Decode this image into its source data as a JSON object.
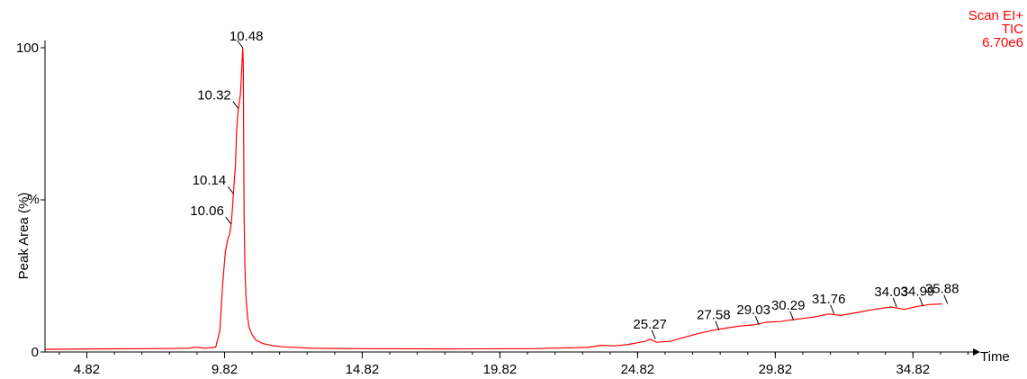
{
  "chart_data": {
    "type": "line",
    "info": [
      "Scan EI+",
      "TIC",
      "6.70e6"
    ],
    "xlabel": "Time",
    "ylabel": "Peak Area (%)",
    "y_axis_unit": "%",
    "xlim": [
      3.3,
      37.0
    ],
    "ylim": [
      0,
      100
    ],
    "x_ticks": [
      "4.82",
      "9.82",
      "14.82",
      "19.82",
      "24.82",
      "29.82",
      "34.82"
    ],
    "y_ticks": [
      "0",
      "100"
    ],
    "color": "#ff0000",
    "series": [
      {
        "x": [
          3.3,
          5.0,
          7.0,
          8.5,
          8.8,
          9.1,
          9.5,
          9.65,
          9.75,
          9.85,
          9.95,
          10.0,
          10.06,
          10.1,
          10.14,
          10.18,
          10.22,
          10.26,
          10.3,
          10.32,
          10.36,
          10.4,
          10.44,
          10.48,
          10.5,
          10.53,
          10.56,
          10.6,
          10.65,
          10.7,
          10.8,
          10.95,
          11.2,
          11.6,
          12.0,
          13.0,
          15.0,
          18.0,
          21.0,
          23.0,
          23.5,
          24.0,
          24.5,
          24.9,
          25.1,
          25.27,
          25.5,
          26.0,
          26.5,
          27.0,
          27.58,
          28.0,
          28.5,
          29.03,
          29.5,
          30.0,
          30.29,
          30.8,
          31.3,
          31.76,
          32.2,
          32.8,
          33.4,
          34.03,
          34.5,
          34.99,
          35.4,
          35.88
        ],
        "y": [
          0.9,
          1.0,
          1.1,
          1.2,
          1.6,
          1.2,
          1.6,
          7.0,
          22.0,
          33.0,
          37.5,
          38.5,
          42.0,
          46.0,
          52.0,
          57.0,
          62.0,
          73.0,
          78.0,
          80.0,
          82.0,
          85.0,
          92.0,
          100.0,
          95.0,
          45.0,
          28.0,
          18.0,
          12.0,
          8.5,
          6.0,
          4.0,
          2.8,
          2.0,
          1.7,
          1.2,
          1.1,
          1.0,
          1.1,
          1.5,
          2.2,
          2.0,
          2.5,
          3.2,
          3.5,
          4.2,
          3.2,
          3.5,
          4.8,
          6.0,
          7.2,
          7.8,
          8.5,
          8.9,
          9.8,
          10.0,
          10.4,
          11.0,
          11.6,
          12.5,
          12.0,
          13.0,
          14.0,
          14.8,
          14.0,
          15.0,
          15.6,
          15.8
        ]
      }
    ],
    "peak_labels": [
      {
        "text": "10.48",
        "x": 10.48,
        "y": 100.0
      },
      {
        "text": "10.32",
        "x": 10.32,
        "y": 80.0
      },
      {
        "text": "10.14",
        "x": 10.14,
        "y": 52.0
      },
      {
        "text": "10.06",
        "x": 10.06,
        "y": 42.0
      },
      {
        "text": "25.27",
        "x": 25.27,
        "y": 4.2
      },
      {
        "text": "27.58",
        "x": 27.58,
        "y": 7.2
      },
      {
        "text": "29.03",
        "x": 29.03,
        "y": 8.9
      },
      {
        "text": "30.29",
        "x": 30.29,
        "y": 10.4
      },
      {
        "text": "31.76",
        "x": 31.76,
        "y": 12.5
      },
      {
        "text": "34.03",
        "x": 34.03,
        "y": 14.8
      },
      {
        "text": "34.99",
        "x": 34.99,
        "y": 15.0
      },
      {
        "text": "35.88",
        "x": 35.88,
        "y": 15.8
      }
    ]
  }
}
